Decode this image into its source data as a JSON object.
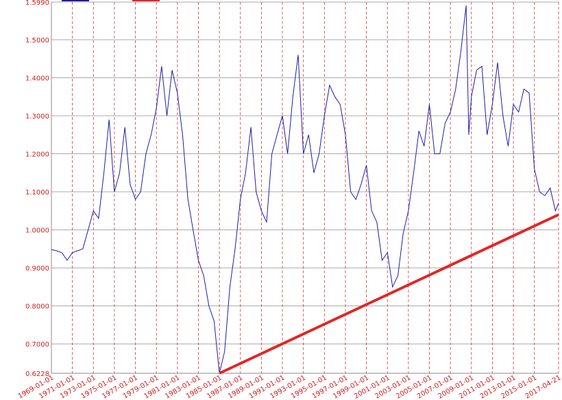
{
  "chart_data": {
    "type": "line",
    "xlim": [
      "1969-01-01",
      "2017-04-21"
    ],
    "xticks": [
      "1969-01-01",
      "1971-01-01",
      "1973-01-01",
      "1975-01-01",
      "1977-01-01",
      "1979-01-01",
      "1981-01-01",
      "1983-01-01",
      "1985-01-01",
      "1987-01-01",
      "1989-01-01",
      "1991-01-01",
      "1993-01-01",
      "1995-01-01",
      "1997-01-01",
      "1999-01-01",
      "2001-01-01",
      "2003-01-01",
      "2005-01-01",
      "2007-01-01",
      "2009-01-01",
      "2011-01-01",
      "2013-01-01",
      "2015-01-01",
      "2017-04-21"
    ],
    "ylim": [
      0.6228,
      1.599
    ],
    "yticks": [
      {
        "value": 0.6228,
        "label": "0.6228"
      },
      {
        "value": 0.7,
        "label": "0.7000"
      },
      {
        "value": 0.8,
        "label": "0.8000"
      },
      {
        "value": 0.9,
        "label": "0.9000"
      },
      {
        "value": 1.0,
        "label": "1.0000"
      },
      {
        "value": 1.1,
        "label": "1.1000"
      },
      {
        "value": 1.2,
        "label": "1.2000"
      },
      {
        "value": 1.3,
        "label": "1.3000"
      },
      {
        "value": 1.4,
        "label": "1.4000"
      },
      {
        "value": 1.5,
        "label": "1.5000"
      },
      {
        "value": 1.599,
        "label": "1.5990"
      }
    ],
    "grid": true,
    "series": [
      {
        "color": "#1c1ca8",
        "x": [
          "1969-01-01",
          "1969-07-01",
          "1970-01-01",
          "1970-07-01",
          "1971-01-01",
          "1971-07-01",
          "1972-01-01",
          "1972-07-01",
          "1973-01-01",
          "1973-07-01",
          "1974-01-01",
          "1974-07-01",
          "1975-01-01",
          "1975-07-01",
          "1976-01-01",
          "1976-07-01",
          "1977-01-01",
          "1977-07-01",
          "1978-01-01",
          "1978-07-01",
          "1979-01-01",
          "1979-07-01",
          "1980-01-01",
          "1980-07-01",
          "1981-01-01",
          "1981-07-01",
          "1982-01-01",
          "1982-07-01",
          "1983-01-01",
          "1983-07-01",
          "1984-01-01",
          "1984-07-01",
          "1985-01-01",
          "1985-07-01",
          "1986-01-01",
          "1986-07-01",
          "1987-01-01",
          "1987-07-01",
          "1988-01-01",
          "1988-07-01",
          "1989-01-01",
          "1989-07-01",
          "1990-01-01",
          "1990-07-01",
          "1991-01-01",
          "1991-07-01",
          "1992-01-01",
          "1992-07-01",
          "1993-01-01",
          "1993-07-01",
          "1994-01-01",
          "1994-07-01",
          "1995-01-01",
          "1995-07-01",
          "1996-01-01",
          "1996-07-01",
          "1997-01-01",
          "1997-07-01",
          "1998-01-01",
          "1998-07-01",
          "1999-01-01",
          "1999-07-01",
          "2000-01-01",
          "2000-07-01",
          "2001-01-01",
          "2001-07-01",
          "2002-01-01",
          "2002-07-01",
          "2003-01-01",
          "2003-07-01",
          "2004-01-01",
          "2004-07-01",
          "2005-01-01",
          "2005-07-01",
          "2006-01-01",
          "2006-07-01",
          "2007-01-01",
          "2007-07-01",
          "2008-01-01",
          "2008-07-01",
          "2008-10-01",
          "2009-01-01",
          "2009-07-01",
          "2010-01-01",
          "2010-07-01",
          "2011-01-01",
          "2011-07-01",
          "2012-01-01",
          "2012-07-01",
          "2013-01-01",
          "2013-07-01",
          "2014-01-01",
          "2014-07-01",
          "2015-01-01",
          "2015-07-01",
          "2016-01-01",
          "2016-07-01",
          "2017-01-01",
          "2017-04-21"
        ],
        "values": [
          0.948,
          0.945,
          0.94,
          0.92,
          0.94,
          0.945,
          0.95,
          1.0,
          1.05,
          1.03,
          1.15,
          1.29,
          1.1,
          1.15,
          1.27,
          1.12,
          1.08,
          1.1,
          1.2,
          1.25,
          1.32,
          1.43,
          1.3,
          1.42,
          1.36,
          1.25,
          1.08,
          1.0,
          0.92,
          0.88,
          0.8,
          0.76,
          0.6228,
          0.68,
          0.85,
          0.95,
          1.08,
          1.15,
          1.27,
          1.1,
          1.05,
          1.02,
          1.2,
          1.25,
          1.3,
          1.2,
          1.35,
          1.46,
          1.2,
          1.25,
          1.15,
          1.2,
          1.3,
          1.38,
          1.35,
          1.33,
          1.25,
          1.1,
          1.08,
          1.12,
          1.17,
          1.05,
          1.02,
          0.92,
          0.94,
          0.85,
          0.88,
          0.99,
          1.05,
          1.15,
          1.26,
          1.22,
          1.33,
          1.2,
          1.2,
          1.28,
          1.31,
          1.37,
          1.47,
          1.59,
          1.25,
          1.35,
          1.42,
          1.43,
          1.25,
          1.33,
          1.44,
          1.3,
          1.22,
          1.33,
          1.31,
          1.37,
          1.36,
          1.16,
          1.1,
          1.09,
          1.11,
          1.05,
          1.07
        ]
      },
      {
        "color": "#e02828",
        "x": [
          "1985-01-01",
          "2017-04-21"
        ],
        "values": [
          0.6228,
          1.04
        ]
      }
    ]
  }
}
